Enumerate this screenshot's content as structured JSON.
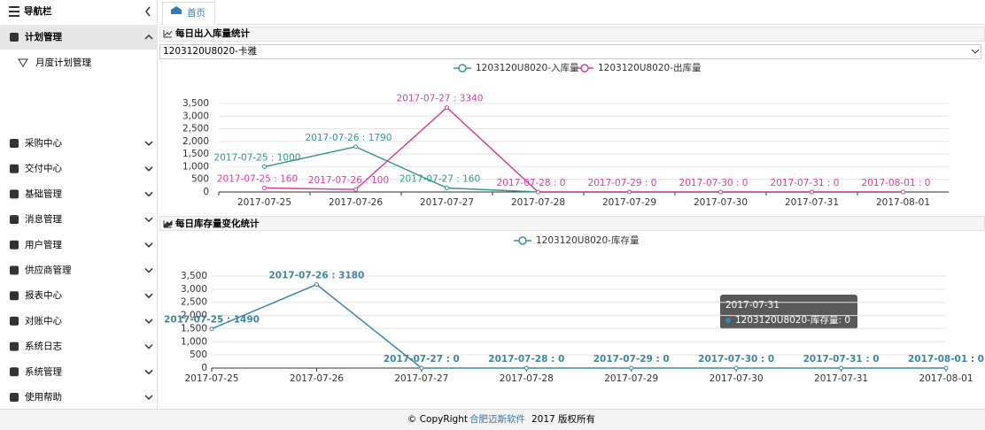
{
  "sidebar": {
    "title": "导航栏",
    "items": [
      {
        "label": "计划管理",
        "children": [
          {
            "label": "月度计划管理"
          }
        ]
      },
      {
        "label": "采购中心"
      },
      {
        "label": "交付中心"
      },
      {
        "label": "基础管理"
      },
      {
        "label": "消息管理"
      },
      {
        "label": "用户管理"
      },
      {
        "label": "供应商管理"
      },
      {
        "label": "报表中心"
      },
      {
        "label": "对账中心"
      },
      {
        "label": "系统日志"
      },
      {
        "label": "系统管理"
      },
      {
        "label": "使用帮助"
      }
    ]
  },
  "tab": "首页",
  "panels": [
    {
      "title": "每日出入库量统计",
      "select": "1203120U8020-卡雅"
    },
    {
      "title": "每日库存量变化统计"
    }
  ],
  "chart_data": [
    {
      "type": "line",
      "grid": true,
      "categories": [
        "2017-07-25",
        "2017-07-26",
        "2017-07-27",
        "2017-07-28",
        "2017-07-29",
        "2017-07-30",
        "2017-07-31",
        "2017-08-01"
      ],
      "ylim": [
        0,
        3500
      ],
      "yticks": [
        0,
        500,
        {
          "value": 1000,
          "label": "1,000"
        },
        {
          "value": 1500,
          "label": "1,500"
        },
        {
          "value": 2000,
          "label": "2,000"
        },
        {
          "value": 2500,
          "label": "2,500"
        },
        {
          "value": 3000,
          "label": "3,000"
        },
        {
          "value": 3500,
          "label": "3,500"
        }
      ],
      "series": [
        {
          "name": "1203120U8020-入库量",
          "color": "#34978a",
          "values": [
            1000,
            1790,
            160,
            0,
            0,
            0,
            0,
            0
          ],
          "value_labels": [
            "2017-07-25 : 1000",
            "2017-07-26 : 1790",
            "2017-07-27 : 160",
            null,
            null,
            null,
            null,
            null
          ]
        },
        {
          "name": "1203120U8020-出库量",
          "color": "#d63f9b",
          "values": [
            160,
            100,
            3340,
            0,
            0,
            0,
            0,
            0
          ],
          "value_labels": [
            "2017-07-25 : 160",
            "2017-07-26 : 100",
            "2017-07-27 : 3340",
            "2017-07-28 : 0",
            "2017-07-29 : 0",
            "2017-07-30 : 0",
            "2017-07-31 : 0",
            "2017-08-01 : 0"
          ]
        }
      ]
    },
    {
      "type": "line",
      "grid": true,
      "categories": [
        "2017-07-25",
        "2017-07-26",
        "2017-07-27",
        "2017-07-28",
        "2017-07-29",
        "2017-07-30",
        "2017-07-31",
        "2017-08-01"
      ],
      "ylim": [
        0,
        3500
      ],
      "yticks": [
        0,
        500,
        {
          "value": 1000,
          "label": "1,000"
        },
        {
          "value": 1500,
          "label": "1,500"
        },
        {
          "value": 2000,
          "label": "2,000"
        },
        {
          "value": 2500,
          "label": "2,500"
        },
        {
          "value": 3000,
          "label": "3,000"
        },
        {
          "value": 3500,
          "label": "3,500"
        }
      ],
      "series": [
        {
          "name": "1203120U8020-库存量",
          "color": "#3b87a6",
          "values": [
            1490,
            3180,
            0,
            0,
            0,
            0,
            0,
            0
          ],
          "value_labels": [
            "2017-07-25 : 1490",
            "2017-07-26 : 3180",
            "2017-07-27 : 0",
            "2017-07-28 : 0",
            "2017-07-29 : 0",
            "2017-07-30 : 0",
            "2017-07-31 : 0",
            "2017-08-01 : 0"
          ]
        }
      ]
    }
  ],
  "tooltip": {
    "title": "2017-07-31",
    "text": "1203120U8020-库存量: 0"
  },
  "footer": {
    "prefix": "© CopyRight",
    "company": "合肥迈斯软件",
    "suffix": "2017 版权所有"
  }
}
